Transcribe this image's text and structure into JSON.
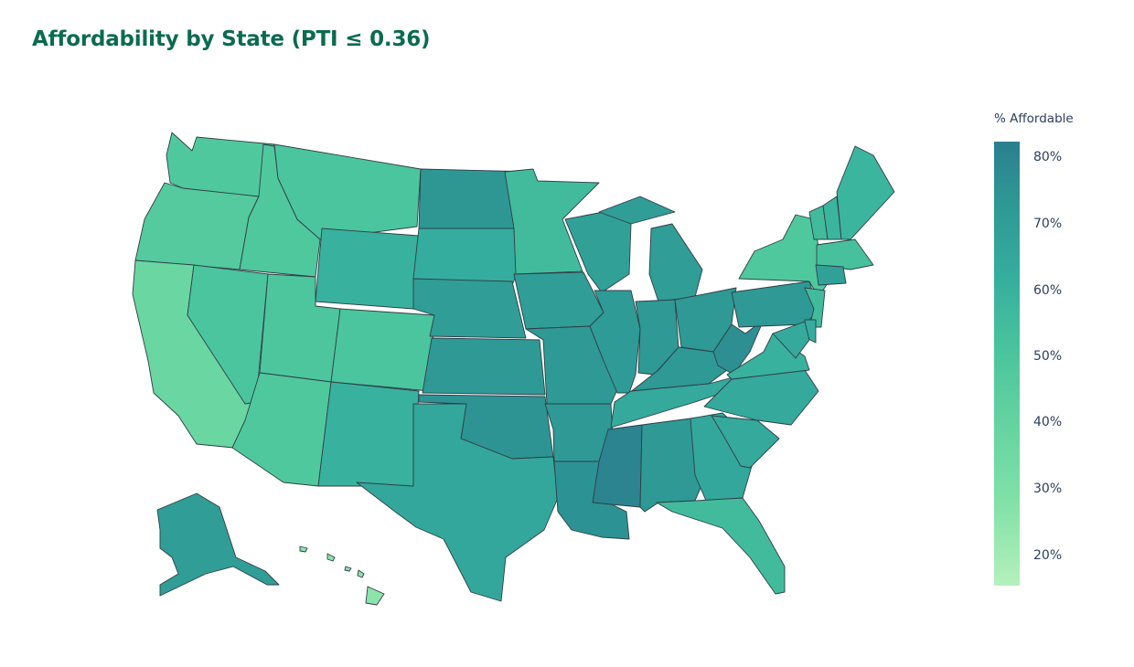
{
  "title": "Affordability by State (PTI ≤ 0.36)",
  "legend": {
    "title": "% Affordable",
    "ticks": [
      "80%",
      "70%",
      "60%",
      "50%",
      "40%",
      "30%",
      "20%"
    ],
    "range": [
      15,
      82
    ]
  },
  "colors": {
    "title": "#0b6b50",
    "scale_high": "#2a7f8f",
    "scale_low": "#b5f0bc",
    "border": "#2f3e46"
  },
  "chart_data": {
    "type": "choropleth",
    "colorbar_title": "% Affordable",
    "range": [
      15,
      82
    ],
    "values": {
      "WA": 48,
      "OR": 46,
      "CA": 37,
      "ID": 48,
      "NV": 50,
      "MT": 50,
      "WY": 60,
      "UT": 49,
      "AZ": 48,
      "CO": 50,
      "NM": 60,
      "ND": 73,
      "SD": 62,
      "NE": 70,
      "KS": 72,
      "OK": 74,
      "TX": 65,
      "MN": 55,
      "IA": 70,
      "MO": 72,
      "AR": 72,
      "LA": 75,
      "WI": 68,
      "IL": 71,
      "MS": 80,
      "MI": 70,
      "IN": 72,
      "OH": 72,
      "KY": 72,
      "TN": 64,
      "AL": 72,
      "WV": 76,
      "PA": 72,
      "GA": 65,
      "FL": 55,
      "SC": 64,
      "NC": 64,
      "VA": 60,
      "NY": 48,
      "VT": 55,
      "NH": 58,
      "ME": 58,
      "MA": 52,
      "CT": 68,
      "NJ": 55,
      "DE": 62,
      "MD": 64,
      "AK": 70,
      "HI": 25
    }
  }
}
